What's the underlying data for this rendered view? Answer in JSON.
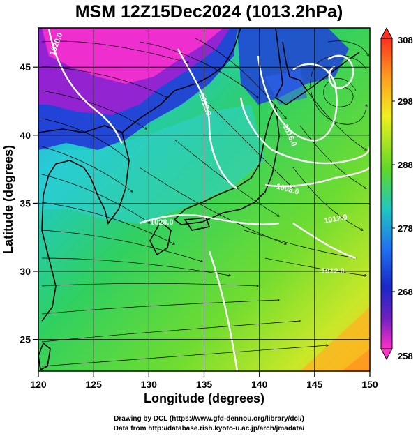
{
  "title": "MSM 12Z15Dec2024 (1013.2hPa)",
  "map": {
    "xlabel": "Longitude (degrees)",
    "ylabel": "Latitude  (degrees)",
    "xlim": [
      120,
      150
    ],
    "ylim": [
      22.4,
      47.6
    ],
    "xticks": [
      "120",
      "125",
      "130",
      "135",
      "140",
      "145",
      "150"
    ],
    "yticks": [
      "25",
      "30",
      "35",
      "40",
      "45"
    ],
    "grid": true,
    "fill_variable_range": [
      258,
      308
    ],
    "contour_labels": [
      "1020.0",
      "1012.0",
      "1016.0",
      "1008.0",
      "1012.0",
      "1028.0",
      "1012.0"
    ]
  },
  "colorbar": {
    "labels": [
      "308",
      "298",
      "288",
      "278",
      "268",
      "258"
    ],
    "colors": [
      "#ff3b2a",
      "#ffa020",
      "#f2f020",
      "#8ee028",
      "#28c83a",
      "#20d8c8",
      "#2090ff",
      "#1030d0",
      "#9020c0",
      "#ff30c8"
    ]
  },
  "credits": {
    "line1": "Drawing by DCL (https://www.gfd-dennou.org/library/dcl/)",
    "line2": "Data from http://database.rish.kyoto-u.ac.jp/arch/jmadata/"
  }
}
